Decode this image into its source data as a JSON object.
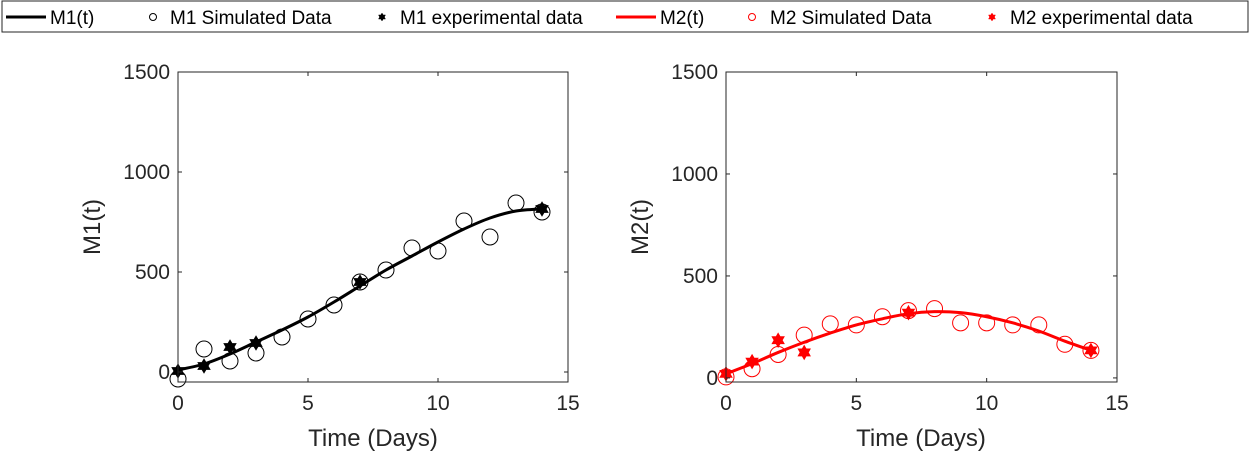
{
  "legend": {
    "items": [
      {
        "label": "M1(t)",
        "kind": "line",
        "color": "#000000"
      },
      {
        "label": "M1 Simulated Data",
        "kind": "circle",
        "color": "#000000"
      },
      {
        "label": "M1 experimental data",
        "kind": "star",
        "color": "#000000"
      },
      {
        "label": "M2(t)",
        "kind": "line",
        "color": "#ff0000"
      },
      {
        "label": "M2 Simulated Data",
        "kind": "circle",
        "color": "#ff0000"
      },
      {
        "label": "M2 experimental data",
        "kind": "star",
        "color": "#ff0000"
      }
    ]
  },
  "chart_data": [
    {
      "type": "line",
      "xlabel": "Time (Days)",
      "ylabel": "M1(t)",
      "xlim": [
        0,
        15
      ],
      "ylim": [
        -50,
        1500
      ],
      "xticks": [
        0,
        5,
        10,
        15
      ],
      "yticks": [
        0,
        500,
        1000,
        1500
      ],
      "color": "#000000",
      "model_curve": {
        "x": [
          0,
          1,
          2,
          3,
          4,
          5,
          6,
          7,
          8,
          9,
          10,
          11,
          12,
          13,
          14
        ],
        "y": [
          10,
          40,
          90,
          150,
          210,
          275,
          350,
          430,
          510,
          580,
          650,
          715,
          770,
          805,
          815
        ]
      },
      "simulated": {
        "x": [
          0,
          1,
          2,
          3,
          4,
          5,
          6,
          7,
          8,
          9,
          10,
          11,
          12,
          13,
          14
        ],
        "y": [
          -35,
          115,
          55,
          95,
          175,
          265,
          335,
          450,
          510,
          620,
          605,
          755,
          675,
          845,
          800
        ]
      },
      "experimental": {
        "x": [
          0,
          1,
          2,
          3,
          7,
          14
        ],
        "y": [
          5,
          30,
          125,
          145,
          450,
          815
        ]
      }
    },
    {
      "type": "line",
      "xlabel": "Time (Days)",
      "ylabel": "M2(t)",
      "xlim": [
        0,
        15
      ],
      "ylim": [
        -20,
        1500
      ],
      "xticks": [
        0,
        5,
        10,
        15
      ],
      "yticks": [
        0,
        500,
        1000,
        1500
      ],
      "color": "#ff0000",
      "model_curve": {
        "x": [
          0,
          1,
          2,
          3,
          4,
          5,
          6,
          7,
          8,
          9,
          10,
          11,
          12,
          13,
          14
        ],
        "y": [
          20,
          70,
          125,
          175,
          220,
          260,
          290,
          315,
          325,
          320,
          300,
          270,
          230,
          180,
          135
        ]
      },
      "simulated": {
        "x": [
          0,
          1,
          2,
          3,
          4,
          5,
          6,
          7,
          8,
          9,
          10,
          11,
          12,
          13,
          14
        ],
        "y": [
          5,
          45,
          115,
          210,
          265,
          260,
          300,
          330,
          340,
          270,
          270,
          260,
          260,
          165,
          135
        ]
      },
      "experimental": {
        "x": [
          0,
          1,
          2,
          3,
          7,
          14
        ],
        "y": [
          20,
          80,
          185,
          125,
          320,
          135
        ]
      }
    }
  ]
}
